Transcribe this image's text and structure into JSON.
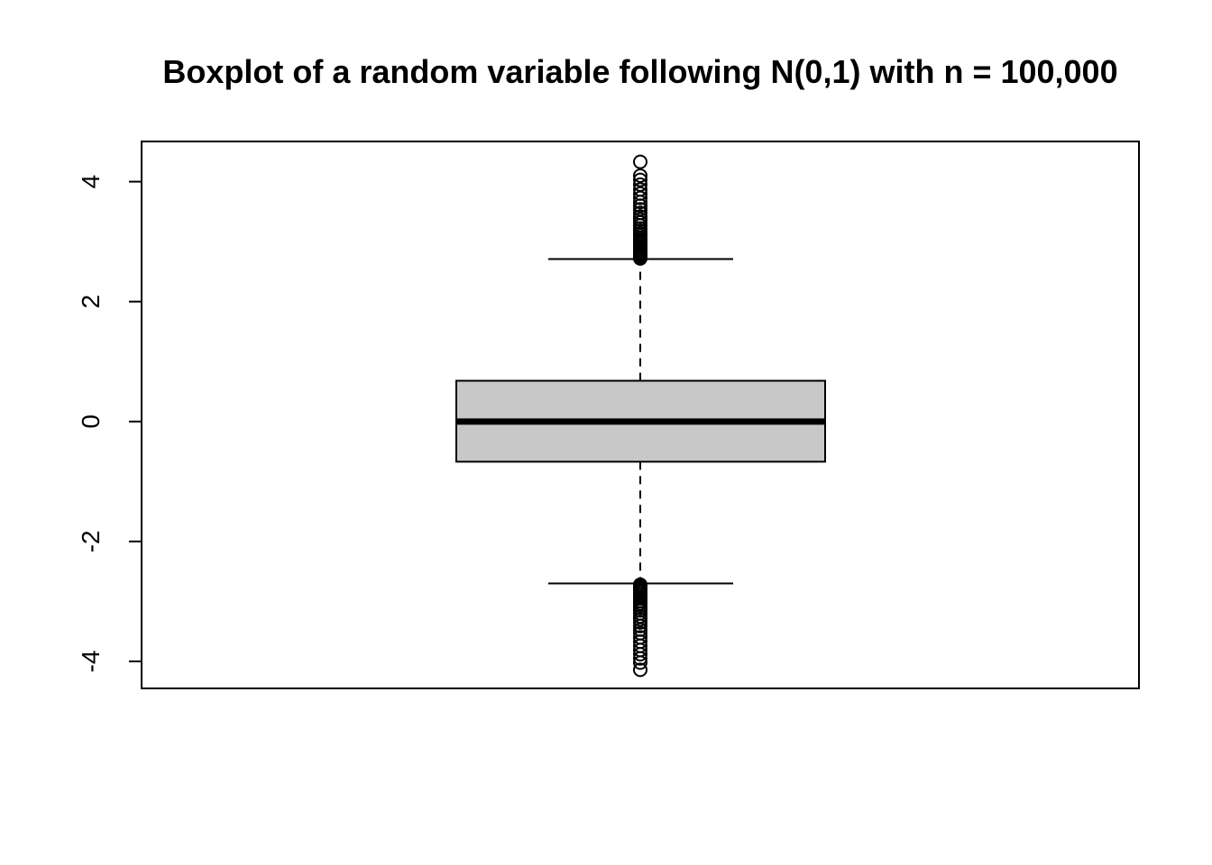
{
  "chart_data": {
    "type": "boxplot",
    "title": "Boxplot of a random variable following N(0,1) with n = 100,000",
    "xlabel": "",
    "ylabel": "",
    "ylim": [
      -4.45,
      4.67
    ],
    "yticks": [
      -4,
      -2,
      0,
      2,
      4
    ],
    "ytick_labels": [
      "-4",
      "-2",
      "0",
      "2",
      "4"
    ],
    "grid": false,
    "legend": "none",
    "colors": {
      "box_fill": "#c8c8c8",
      "stroke": "#000000",
      "background": "#ffffff"
    },
    "box": {
      "min_whisker": -2.7,
      "q1": -0.67,
      "median": 0.0,
      "q3": 0.68,
      "max_whisker": 2.71
    },
    "outliers_high": [
      2.72,
      2.74,
      2.76,
      2.78,
      2.8,
      2.82,
      2.85,
      2.88,
      2.91,
      2.94,
      2.97,
      3.0,
      3.03,
      3.06,
      3.1,
      3.14,
      3.18,
      3.22,
      3.27,
      3.32,
      3.37,
      3.42,
      3.48,
      3.54,
      3.6,
      3.66,
      3.73,
      3.8,
      3.87,
      3.95,
      4.03,
      4.1,
      4.33
    ],
    "outliers_low": [
      -2.72,
      -2.74,
      -2.76,
      -2.78,
      -2.8,
      -2.83,
      -2.86,
      -2.89,
      -2.92,
      -2.95,
      -2.99,
      -3.03,
      -3.07,
      -3.11,
      -3.15,
      -3.2,
      -3.25,
      -3.3,
      -3.35,
      -3.41,
      -3.47,
      -3.53,
      -3.6,
      -3.67,
      -3.74,
      -3.81,
      -3.88,
      -3.95,
      -4.02,
      -4.14
    ]
  }
}
